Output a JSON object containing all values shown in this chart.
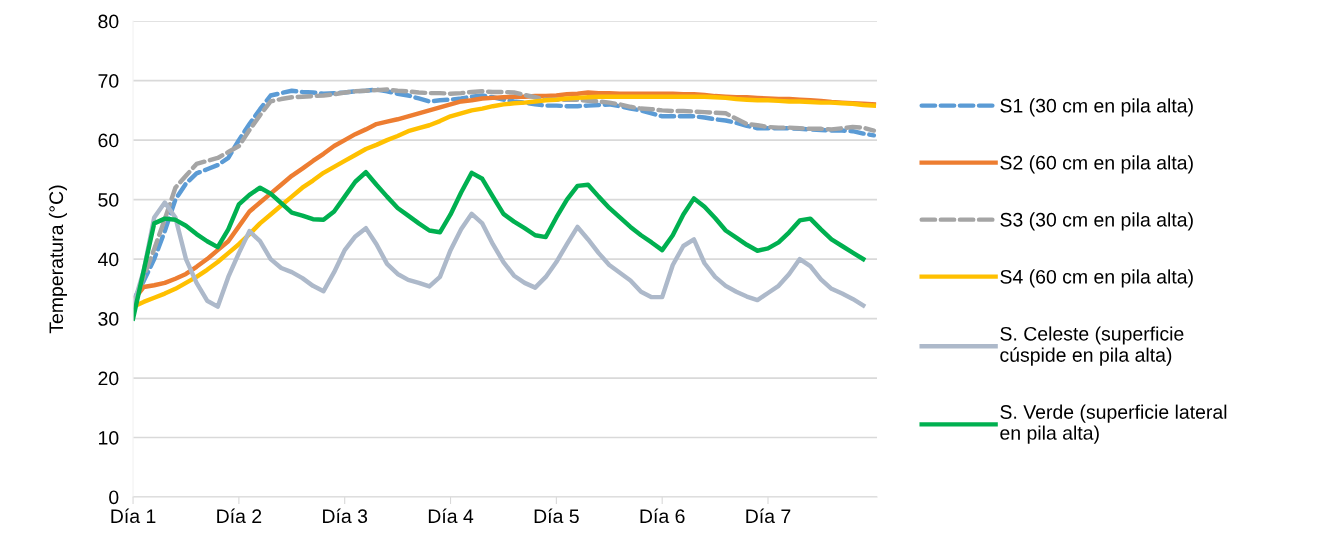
{
  "chart_data": {
    "type": "line",
    "ylabel": "Temperatura (°C)",
    "ylim": [
      0,
      80
    ],
    "yticks": [
      0,
      10,
      20,
      30,
      40,
      50,
      60,
      70,
      80
    ],
    "categories": [
      "Día 1",
      null,
      null,
      null,
      null,
      null,
      null,
      null,
      null,
      null,
      "Día 2",
      null,
      null,
      null,
      null,
      null,
      null,
      null,
      null,
      null,
      "Día 3",
      null,
      null,
      null,
      null,
      null,
      null,
      null,
      null,
      null,
      "Día 4",
      null,
      null,
      null,
      null,
      null,
      null,
      null,
      null,
      null,
      "Día 5",
      null,
      null,
      null,
      null,
      null,
      null,
      null,
      null,
      null,
      "Día 6",
      null,
      null,
      null,
      null,
      null,
      null,
      null,
      null,
      null,
      "Día 7",
      null,
      null,
      null,
      null,
      null,
      null,
      null,
      null,
      null,
      null
    ],
    "grid": "y",
    "legend": "right",
    "marker": "none",
    "series": [
      {
        "name": "S1 (30 cm en pila alta)",
        "color": "#5b9bd5",
        "line_style": "dashed",
        "values": [
          33,
          36.3,
          40,
          44.7,
          50,
          52.7,
          54.4,
          55.1,
          55.8,
          57,
          60,
          62.7,
          65.2,
          67.5,
          67.9,
          68.3,
          68.1,
          68.0,
          67.8,
          67.9,
          68.0,
          68.2,
          68.3,
          68.5,
          68.2,
          67.8,
          67.5,
          67.0,
          66.5,
          66.7,
          66.8,
          67.0,
          67.3,
          67.5,
          67.2,
          66.8,
          66.5,
          66.3,
          66.0,
          65.8,
          65.8,
          65.7,
          65.7,
          65.8,
          65.9,
          66,
          65.7,
          65.3,
          65.0,
          64.5,
          64.0,
          64.0,
          64.0,
          64.0,
          63.8,
          63.5,
          63.3,
          62.9,
          62.4,
          62.0,
          62.0,
          62.0,
          62.0,
          61.9,
          61.8,
          61.7,
          61.6,
          61.6,
          61.5,
          61.1,
          60.8
        ]
      },
      {
        "name": "S2 (60 cm en pila alta)",
        "color": "#ed7d31",
        "line_style": "solid",
        "values": [
          33,
          35.3,
          35.6,
          36,
          36.7,
          37.5,
          38.7,
          40,
          41.5,
          43,
          45.5,
          48,
          49.5,
          51,
          52.5,
          54,
          55.2,
          56.5,
          57.7,
          59,
          60,
          61,
          61.8,
          62.7,
          63.1,
          63.5,
          64,
          64.5,
          65,
          65.5,
          66,
          66.5,
          66.7,
          67,
          67.1,
          67.2,
          67.3,
          67.3,
          67.4,
          67.4,
          67.5,
          67.7,
          67.8,
          68,
          67.9,
          67.9,
          67.8,
          67.8,
          67.8,
          67.8,
          67.8,
          67.8,
          67.7,
          67.7,
          67.6,
          67.4,
          67.3,
          67.2,
          67.2,
          67.1,
          67,
          66.9,
          66.9,
          66.8,
          66.7,
          66.6,
          66.4,
          66.3,
          66.2,
          66.1,
          66
        ]
      },
      {
        "name": "S3 (30 cm en pila alta)",
        "color": "#a5a5a5",
        "line_style": "dashed",
        "values": [
          32,
          37,
          41.7,
          46.7,
          52,
          54,
          56,
          56.5,
          57,
          58,
          59,
          61.7,
          64.2,
          66.5,
          66.9,
          67.2,
          67.3,
          67.4,
          67.5,
          67.7,
          68,
          68.2,
          68.3,
          68.4,
          68.5,
          68.3,
          68.2,
          68,
          67.9,
          67.9,
          67.8,
          67.9,
          68.1,
          68.2,
          68.1,
          68.1,
          68,
          67.6,
          67.2,
          66.8,
          66.8,
          66.8,
          66.8,
          66.6,
          66.5,
          66.3,
          66,
          65.6,
          65.3,
          65.2,
          65,
          64.9,
          64.9,
          64.8,
          64.7,
          64.6,
          64.5,
          63.6,
          62.7,
          62.5,
          62.2,
          62.1,
          62.1,
          62,
          61.9,
          61.9,
          61.8,
          62,
          62.2,
          62.1,
          61.6
        ]
      },
      {
        "name": "S4 (60 cm en pila alta)",
        "color": "#ffc000",
        "line_style": "solid",
        "values": [
          32,
          32.8,
          33.5,
          34.2,
          35,
          36,
          37,
          38.2,
          39.5,
          41,
          42.5,
          44.2,
          46,
          47.5,
          49,
          50.5,
          52,
          53.2,
          54.5,
          55.5,
          56.5,
          57.5,
          58.5,
          59.2,
          60,
          60.7,
          61.5,
          62,
          62.5,
          63.2,
          64,
          64.5,
          65,
          65.3,
          65.7,
          66,
          66.2,
          66.3,
          66.5,
          66.7,
          66.8,
          67,
          67.1,
          67.2,
          67.3,
          67.3,
          67.3,
          67.3,
          67.3,
          67.3,
          67.3,
          67.3,
          67.3,
          67.3,
          67.3,
          67.2,
          67.1,
          66.9,
          66.8,
          66.7,
          66.7,
          66.6,
          66.5,
          66.5,
          66.4,
          66.3,
          66.3,
          66.2,
          66.1,
          65.9,
          65.8
        ]
      },
      {
        "name": "S. Celeste (superficie\ncúspide en pila alta)",
        "color": "#adb9ca",
        "line_style": "solid",
        "values": [
          32,
          38,
          47,
          49.5,
          47,
          40,
          36,
          33,
          32,
          37,
          41,
          44.7,
          43,
          40,
          38.5,
          37.8,
          36.8,
          35.5,
          34.6,
          37.8,
          41.5,
          43.8,
          45.2,
          42.5,
          39.2,
          37.5,
          36.5,
          36,
          35.4,
          37,
          41.5,
          45,
          47.6,
          46,
          42.5,
          39.5,
          37.2,
          36,
          35.2,
          37,
          39.5,
          42.5,
          45.4,
          43.3,
          41,
          39,
          37.7,
          36.4,
          34.5,
          33.6,
          33.6,
          39,
          42.2,
          43.3,
          39.3,
          37,
          35.5,
          34.5,
          33.7,
          33.1,
          34.3,
          35.5,
          37.5,
          40,
          38.8,
          36.6,
          35,
          34.2,
          33.3,
          32.2,
          null
        ]
      },
      {
        "name": "S. Verde (superficie lateral\nen pila alta)",
        "color": "#00b050",
        "line_style": "solid",
        "values": [
          30,
          38,
          46,
          46.8,
          46.6,
          45.6,
          44.2,
          43,
          42,
          45,
          49.2,
          50.8,
          52,
          51,
          49.4,
          47.8,
          47.3,
          46.7,
          46.6,
          48,
          50.5,
          53,
          54.6,
          52.5,
          50.5,
          48.6,
          47.3,
          46,
          44.8,
          44.5,
          47.5,
          51.2,
          54.5,
          53.5,
          50.5,
          47.6,
          46.3,
          45.2,
          44,
          43.7,
          47,
          50,
          52.3,
          52.5,
          50.5,
          48.6,
          47,
          45.4,
          44,
          42.8,
          41.5,
          44,
          47.5,
          50.2,
          48.8,
          46.9,
          44.8,
          43.6,
          42.4,
          41.4,
          41.8,
          42.8,
          44.5,
          46.5,
          46.8,
          45,
          43.3,
          42.2,
          41.1,
          40,
          null
        ]
      }
    ]
  }
}
